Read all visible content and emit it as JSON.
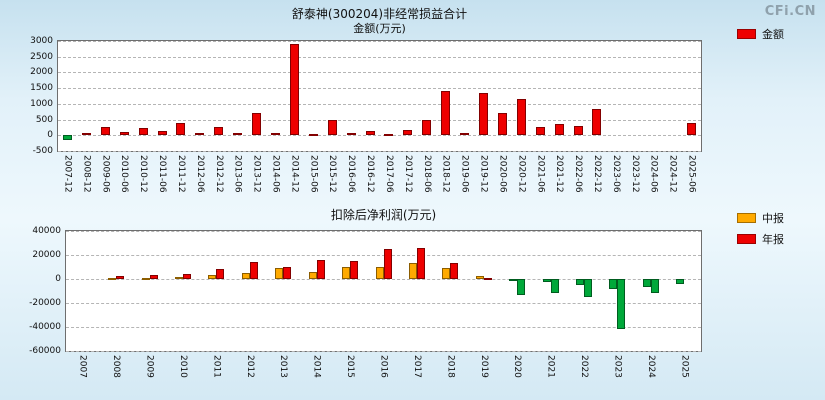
{
  "brand": "CFi.CN",
  "colors": {
    "positive": "#ee0000",
    "negative": "#00a83a",
    "interim": "#ffaa00",
    "annual": "#ee0000",
    "plot_background": "#ffffff",
    "page_background": "#cde6f2"
  },
  "chart_data": [
    {
      "type": "bar",
      "title": "舒泰神(300204)非经常损益合计",
      "ylabel": "金额(万元)",
      "legend": [
        {
          "label": "金额",
          "color": "#ee0000"
        }
      ],
      "legend_position": "right",
      "grid": true,
      "ylim": [
        -500,
        3000
      ],
      "yticks": [
        3000,
        2500,
        2000,
        1500,
        1000,
        500,
        0,
        -500
      ],
      "negative_color": "#00a83a",
      "categories": [
        "2007-12",
        "2008-12",
        "2009-06",
        "2010-06",
        "2010-12",
        "2011-06",
        "2011-12",
        "2012-06",
        "2012-12",
        "2013-06",
        "2013-12",
        "2014-06",
        "2014-12",
        "2015-06",
        "2015-12",
        "2016-06",
        "2016-12",
        "2017-06",
        "2017-12",
        "2018-06",
        "2018-12",
        "2019-06",
        "2019-12",
        "2020-06",
        "2020-12",
        "2021-06",
        "2021-12",
        "2022-06",
        "2022-12",
        "2023-06",
        "2023-12",
        "2024-06",
        "2024-12",
        "2025-06"
      ],
      "values": [
        -150,
        70,
        270,
        90,
        230,
        140,
        400,
        80,
        250,
        60,
        700,
        60,
        2900,
        50,
        500,
        60,
        130,
        40,
        160,
        500,
        1400,
        60,
        1350,
        700,
        1150,
        250,
        350,
        300,
        850,
        0,
        0,
        0,
        0,
        400
      ]
    },
    {
      "type": "bar",
      "title": "扣除后净利润(万元)",
      "legend_position": "right",
      "grid": true,
      "ylim": [
        -60000,
        40000
      ],
      "yticks": [
        40000,
        20000,
        0,
        -20000,
        -40000,
        -60000
      ],
      "negative_color": "#00a83a",
      "categories": [
        "2007",
        "2008",
        "2009",
        "2010",
        "2011",
        "2012",
        "2013",
        "2014",
        "2015",
        "2016",
        "2017",
        "2018",
        "2019",
        "2020",
        "2021",
        "2022",
        "2023",
        "2024",
        "2025"
      ],
      "series": [
        {
          "name": "中报",
          "color": "#ffaa00",
          "values": [
            null,
            500,
            1200,
            2000,
            3000,
            5000,
            9500,
            6000,
            10000,
            10000,
            13000,
            9000,
            2500,
            -1500,
            -2500,
            -5000,
            -8000,
            -7000,
            -4000
          ]
        },
        {
          "name": "年报",
          "color": "#ee0000",
          "values": [
            null,
            2200,
            3500,
            4500,
            8500,
            14000,
            10000,
            16000,
            15000,
            25000,
            26000,
            13000,
            1200,
            -13000,
            -12000,
            -15000,
            -42000,
            -12000,
            null
          ]
        }
      ]
    }
  ]
}
